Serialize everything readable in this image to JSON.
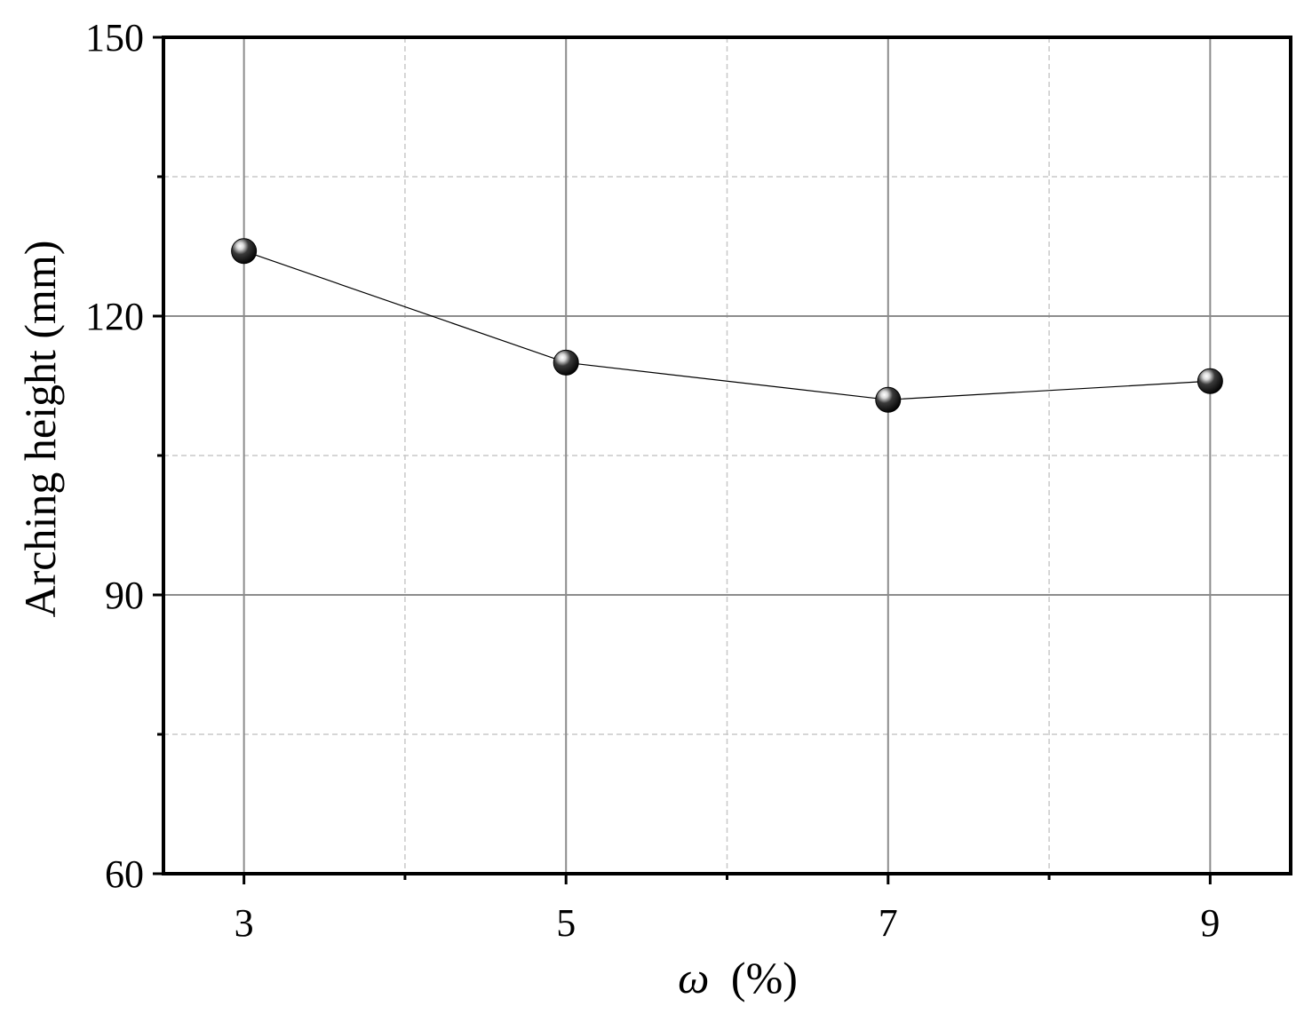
{
  "chart_data": {
    "type": "line",
    "title": "",
    "xlabel_symbol": "ω",
    "xlabel_unit": "(%)",
    "ylabel": "Arching height (mm)",
    "xlim": [
      2.5,
      9.5
    ],
    "ylim": [
      60,
      150
    ],
    "x_ticks": [
      3,
      5,
      7,
      9
    ],
    "x_tick_labels": [
      "3",
      "5",
      "7",
      "9"
    ],
    "x_minor_ticks": [
      4,
      6,
      8
    ],
    "y_ticks": [
      60,
      90,
      120,
      150
    ],
    "y_tick_labels": [
      "60",
      "90",
      "120",
      "150"
    ],
    "y_minor_ticks": [
      75,
      105,
      135
    ],
    "grid": true,
    "legend": "none",
    "series": [
      {
        "x": [
          3,
          5,
          7,
          9
        ],
        "y": [
          127,
          115,
          111,
          113
        ]
      }
    ],
    "colors": {
      "marker": "#000000",
      "line": "#000000",
      "major_grid": "#8c8c8c",
      "minor_grid": "#c8c8c8",
      "frame": "#000000"
    }
  }
}
